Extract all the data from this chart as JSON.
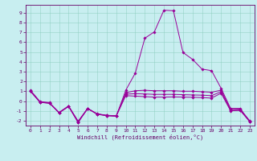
{
  "xlabel": "Windchill (Refroidissement éolien,°C)",
  "xlim_min": -0.5,
  "xlim_max": 23.5,
  "ylim_min": -2.5,
  "ylim_max": 9.8,
  "yticks": [
    -2,
    -1,
    0,
    1,
    2,
    3,
    4,
    5,
    6,
    7,
    8,
    9
  ],
  "xticks": [
    0,
    1,
    2,
    3,
    4,
    5,
    6,
    7,
    8,
    9,
    10,
    11,
    12,
    13,
    14,
    15,
    16,
    17,
    18,
    19,
    20,
    21,
    22,
    23
  ],
  "background_color": "#c8eef0",
  "line_color": "#990099",
  "series": [
    [
      1.1,
      -0.05,
      -0.15,
      -1.2,
      -0.55,
      -2.2,
      -0.75,
      -1.35,
      -1.5,
      -1.55,
      1.1,
      2.85,
      6.4,
      7.05,
      9.25,
      9.2,
      4.95,
      4.25,
      3.25,
      3.1,
      1.3,
      -0.75,
      -0.75,
      -2.1
    ],
    [
      1.0,
      -0.1,
      -0.2,
      -1.15,
      -0.5,
      -2.05,
      -0.75,
      -1.3,
      -1.45,
      -1.5,
      0.85,
      1.05,
      1.1,
      1.05,
      1.05,
      1.05,
      1.0,
      1.0,
      0.95,
      0.9,
      1.1,
      -0.85,
      -0.82,
      -2.0
    ],
    [
      1.0,
      -0.12,
      -0.22,
      -1.18,
      -0.52,
      -2.1,
      -0.77,
      -1.32,
      -1.47,
      -1.52,
      0.7,
      0.75,
      0.72,
      0.68,
      0.68,
      0.68,
      0.65,
      0.62,
      0.6,
      0.55,
      0.95,
      -0.95,
      -0.92,
      -2.05
    ],
    [
      1.0,
      -0.13,
      -0.23,
      -1.2,
      -0.55,
      -2.15,
      -0.78,
      -1.33,
      -1.48,
      -1.53,
      0.55,
      0.5,
      0.45,
      0.4,
      0.4,
      0.42,
      0.4,
      0.38,
      0.35,
      0.3,
      0.8,
      -1.0,
      -0.95,
      -2.1
    ]
  ]
}
